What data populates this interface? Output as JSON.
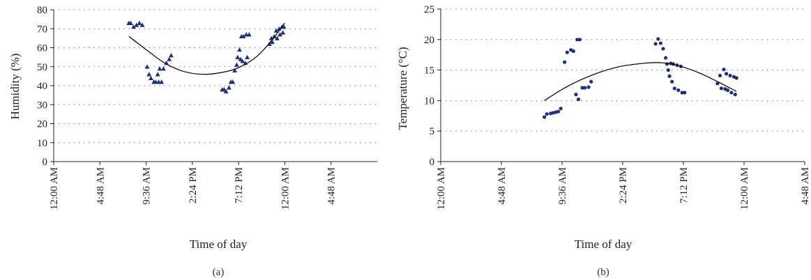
{
  "chart_data": [
    {
      "type": "scatter",
      "panel_label": "(a)",
      "xlabel": "Time of day",
      "ylabel": "Humidity (%)",
      "x_unit": "hours",
      "xlim": [
        0,
        33.6
      ],
      "ylim": [
        0,
        80
      ],
      "yticks": [
        0,
        10,
        20,
        30,
        40,
        50,
        60,
        70,
        80
      ],
      "xticks": [
        {
          "value": 0,
          "label": "12:00 AM"
        },
        {
          "value": 4.8,
          "label": "4:48 AM"
        },
        {
          "value": 9.6,
          "label": "9:36 AM"
        },
        {
          "value": 14.4,
          "label": "2:24 PM"
        },
        {
          "value": 19.2,
          "label": "7:12 PM"
        },
        {
          "value": 24,
          "label": "12:00 AM"
        },
        {
          "value": 28.8,
          "label": "4:48 AM"
        }
      ],
      "grid": "horizontal dotted",
      "marker": "triangle",
      "marker_color": "#1f2f7a",
      "series": [
        {
          "points": [
            [
              7.8,
              73
            ],
            [
              8.0,
              73
            ],
            [
              8.3,
              71
            ],
            [
              8.6,
              72
            ],
            [
              8.9,
              73
            ],
            [
              9.2,
              72
            ],
            [
              9.7,
              50
            ],
            [
              9.9,
              46
            ],
            [
              10.1,
              44
            ],
            [
              10.4,
              42
            ],
            [
              10.6,
              42
            ],
            [
              10.8,
              46
            ],
            [
              10.9,
              42
            ],
            [
              11.0,
              49
            ],
            [
              11.2,
              42
            ],
            [
              11.4,
              49
            ],
            [
              11.7,
              52
            ],
            [
              12.0,
              54
            ],
            [
              12.2,
              56
            ],
            [
              17.5,
              38
            ],
            [
              17.7,
              38
            ],
            [
              17.9,
              37
            ],
            [
              18.2,
              39
            ],
            [
              18.4,
              42
            ],
            [
              18.6,
              42
            ],
            [
              18.8,
              48
            ],
            [
              19.0,
              51
            ],
            [
              19.1,
              55
            ],
            [
              19.3,
              59
            ],
            [
              19.4,
              54
            ],
            [
              19.5,
              66
            ],
            [
              19.6,
              53
            ],
            [
              19.7,
              66
            ],
            [
              19.9,
              52
            ],
            [
              20.0,
              67
            ],
            [
              20.1,
              55
            ],
            [
              20.3,
              67
            ],
            [
              22.4,
              62
            ],
            [
              22.6,
              65
            ],
            [
              22.7,
              63
            ],
            [
              22.9,
              66
            ],
            [
              23.1,
              69
            ],
            [
              23.2,
              65
            ],
            [
              23.4,
              70
            ],
            [
              23.5,
              67
            ],
            [
              23.7,
              71
            ],
            [
              23.8,
              68
            ],
            [
              23.9,
              71
            ]
          ]
        }
      ],
      "trendline": {
        "type": "polynomial",
        "points": [
          [
            7.8,
            66
          ],
          [
            9.6,
            59
          ],
          [
            11.5,
            52
          ],
          [
            13.5,
            47.5
          ],
          [
            15.5,
            46
          ],
          [
            17.5,
            47
          ],
          [
            19.2,
            49.5
          ],
          [
            21.0,
            55
          ],
          [
            22.5,
            63
          ],
          [
            24.0,
            73
          ]
        ]
      }
    },
    {
      "type": "scatter",
      "panel_label": "(b)",
      "xlabel": "Time of day",
      "ylabel": "Temperature (°C)",
      "x_unit": "hours",
      "xlim": [
        0,
        28.8
      ],
      "ylim": [
        0,
        25
      ],
      "yticks": [
        0,
        5,
        10,
        15,
        20,
        25
      ],
      "xticks": [
        {
          "value": 0,
          "label": "12:00 AM"
        },
        {
          "value": 4.8,
          "label": "4:48 AM"
        },
        {
          "value": 9.6,
          "label": "9:36 AM"
        },
        {
          "value": 14.4,
          "label": "2:24 PM"
        },
        {
          "value": 19.2,
          "label": "7:12 PM"
        },
        {
          "value": 24,
          "label": "12:00 AM"
        },
        {
          "value": 28.8,
          "label": "4:48 AM"
        }
      ],
      "grid": "horizontal dotted",
      "marker": "circle",
      "marker_color": "#1f2f7a",
      "series": [
        {
          "points": [
            [
              8.2,
              7.3
            ],
            [
              8.4,
              7.8
            ],
            [
              8.7,
              7.9
            ],
            [
              8.9,
              8.0
            ],
            [
              9.1,
              8.1
            ],
            [
              9.3,
              8.2
            ],
            [
              9.5,
              8.7
            ],
            [
              9.8,
              16.3
            ],
            [
              10.0,
              17.9
            ],
            [
              10.3,
              18.3
            ],
            [
              10.5,
              18.1
            ],
            [
              10.7,
              11.0
            ],
            [
              10.8,
              20.0
            ],
            [
              10.9,
              10.2
            ],
            [
              11.0,
              20.0
            ],
            [
              11.2,
              12.1
            ],
            [
              11.4,
              12.1
            ],
            [
              11.7,
              12.2
            ],
            [
              11.9,
              13.1
            ],
            [
              17.0,
              19.3
            ],
            [
              17.2,
              20.1
            ],
            [
              17.4,
              19.4
            ],
            [
              17.6,
              18.5
            ],
            [
              17.8,
              17.0
            ],
            [
              17.9,
              16.0
            ],
            [
              18.0,
              15.0
            ],
            [
              18.1,
              14.0
            ],
            [
              18.2,
              16.1
            ],
            [
              18.3,
              13.1
            ],
            [
              18.4,
              16.0
            ],
            [
              18.5,
              12.0
            ],
            [
              18.7,
              15.8
            ],
            [
              18.8,
              11.7
            ],
            [
              19.0,
              15.6
            ],
            [
              19.1,
              11.3
            ],
            [
              19.3,
              11.3
            ],
            [
              21.9,
              12.8
            ],
            [
              22.1,
              14.1
            ],
            [
              22.2,
              12.0
            ],
            [
              22.4,
              15.1
            ],
            [
              22.5,
              11.9
            ],
            [
              22.6,
              14.4
            ],
            [
              22.7,
              11.7
            ],
            [
              22.9,
              14.1
            ],
            [
              23.0,
              11.3
            ],
            [
              23.2,
              13.9
            ],
            [
              23.3,
              11.0
            ],
            [
              23.4,
              13.7
            ]
          ]
        }
      ],
      "trendline": {
        "type": "polynomial",
        "points": [
          [
            8.2,
            10.0
          ],
          [
            10.0,
            12.3
          ],
          [
            12.0,
            14.2
          ],
          [
            14.0,
            15.5
          ],
          [
            16.0,
            16.1
          ],
          [
            17.5,
            16.2
          ],
          [
            19.0,
            15.6
          ],
          [
            20.5,
            14.5
          ],
          [
            22.0,
            13.0
          ],
          [
            23.4,
            11.5
          ]
        ]
      }
    }
  ]
}
